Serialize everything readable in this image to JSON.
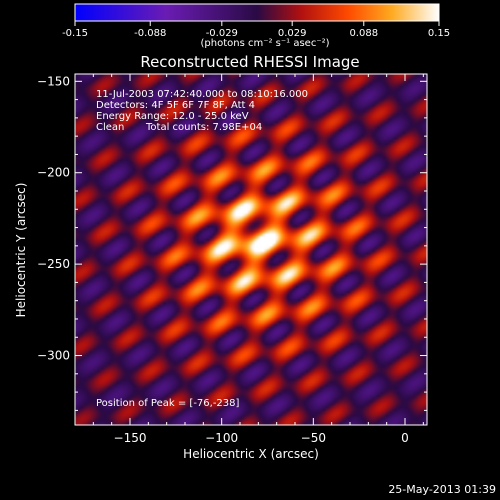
{
  "colorbar": {
    "ticks": [
      "-0.15",
      "-0.088",
      "-0.029",
      "0.029",
      "0.088",
      "0.15"
    ],
    "tick_values": [
      -0.15,
      -0.088,
      -0.029,
      0.029,
      0.088,
      0.15
    ],
    "min": -0.15,
    "max": 0.15,
    "units": "(photons cm⁻² s⁻¹ asec⁻²)"
  },
  "chart_data": {
    "type": "heatmap",
    "title": "Reconstructed RHESSI Image",
    "xlabel": "Heliocentric X (arcsec)",
    "ylabel": "Heliocentric Y (arcsec)",
    "xlim": [
      -180,
      12
    ],
    "ylim": [
      -338,
      -146
    ],
    "xticks": [
      -150,
      -100,
      -50,
      0
    ],
    "yticks": [
      -150,
      -200,
      -250,
      -300
    ],
    "xtick_labels": [
      "−150",
      "−100",
      "−50",
      "0"
    ],
    "ytick_labels": [
      "−150",
      "−200",
      "−250",
      "−300"
    ],
    "peak": [
      -76,
      -238
    ],
    "peak_value": 0.15,
    "colormap": "rhessi-heat (blue-purple-red-orange-yellow-white)"
  },
  "annotations": {
    "time_range": "11-Jul-2003 07:42:40.000 to 08:10:16.000",
    "detectors": "Detectors: 4F 5F 6F 7F 8F, Att 4",
    "energy_range": "Energy Range: 12.0 - 25.0 keV",
    "clean_label": "Clean",
    "total_counts": "Total counts: 7.98E+04",
    "peak_position": "Position of Peak = [-76,-238]"
  },
  "timestamp": "25-May-2013 01:39"
}
